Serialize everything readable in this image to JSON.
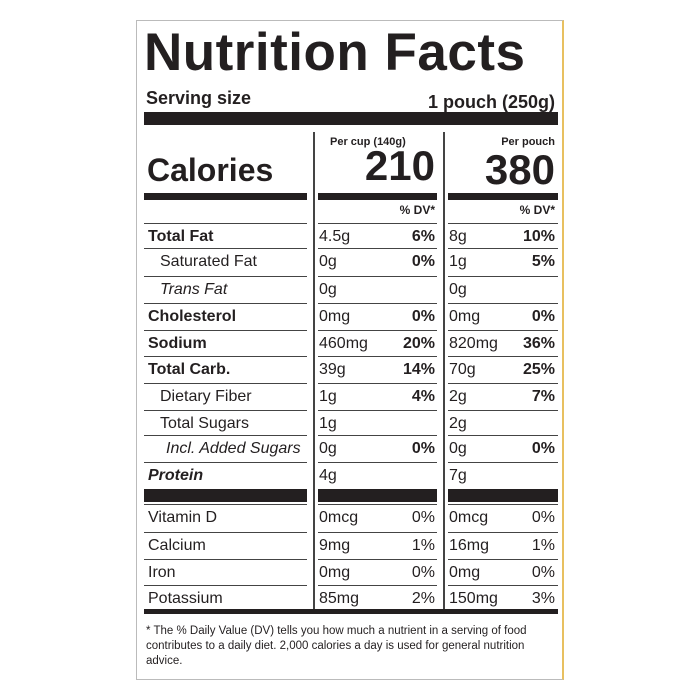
{
  "header": {
    "title": "Nutrition Facts",
    "serving_size_label": "Serving size",
    "serving_size": "1 pouch (250g)"
  },
  "columns": {
    "per_cup": "Per cup (140g)",
    "per_pouch": "Per pouch",
    "dv_header": "% DV*"
  },
  "calories": {
    "label": "Calories",
    "per_cup": "210",
    "per_pouch": "380"
  },
  "nutrients": [
    {
      "name": "Total Fat",
      "per_cup": {
        "amount": "4.5g",
        "dv": "6%"
      },
      "per_pouch": {
        "amount": "8g",
        "dv": "10%"
      }
    },
    {
      "name": "Saturated Fat",
      "per_cup": {
        "amount": "0g",
        "dv": "0%"
      },
      "per_pouch": {
        "amount": "1g",
        "dv": "5%"
      }
    },
    {
      "name": "Trans Fat",
      "per_cup": {
        "amount": "0g",
        "dv": null
      },
      "per_pouch": {
        "amount": "0g",
        "dv": null
      }
    },
    {
      "name": "Cholesterol",
      "per_cup": {
        "amount": "0mg",
        "dv": "0%"
      },
      "per_pouch": {
        "amount": "0mg",
        "dv": "0%"
      }
    },
    {
      "name": "Sodium",
      "per_cup": {
        "amount": "460mg",
        "dv": "20%"
      },
      "per_pouch": {
        "amount": "820mg",
        "dv": "36%"
      }
    },
    {
      "name": "Total Carb.",
      "per_cup": {
        "amount": "39g",
        "dv": "14%"
      },
      "per_pouch": {
        "amount": "70g",
        "dv": "25%"
      }
    },
    {
      "name": "Dietary Fiber",
      "per_cup": {
        "amount": "1g",
        "dv": "4%"
      },
      "per_pouch": {
        "amount": "2g",
        "dv": "7%"
      }
    },
    {
      "name": "Total Sugars",
      "per_cup": {
        "amount": "1g",
        "dv": null
      },
      "per_pouch": {
        "amount": "2g",
        "dv": null
      }
    },
    {
      "name": "Incl. Added Sugars",
      "per_cup": {
        "amount": "0g",
        "dv": "0%"
      },
      "per_pouch": {
        "amount": "0g",
        "dv": "0%"
      }
    },
    {
      "name": "Protein",
      "per_cup": {
        "amount": "4g",
        "dv": null
      },
      "per_pouch": {
        "amount": "7g",
        "dv": null
      }
    }
  ],
  "vitamins_minerals": [
    {
      "name": "Vitamin D",
      "per_cup": {
        "amount": "0mcg",
        "dv": "0%"
      },
      "per_pouch": {
        "amount": "0mcg",
        "dv": "0%"
      }
    },
    {
      "name": "Calcium",
      "per_cup": {
        "amount": "9mg",
        "dv": "1%"
      },
      "per_pouch": {
        "amount": "16mg",
        "dv": "1%"
      }
    },
    {
      "name": "Iron",
      "per_cup": {
        "amount": "0mg",
        "dv": "0%"
      },
      "per_pouch": {
        "amount": "0mg",
        "dv": "0%"
      }
    },
    {
      "name": "Potassium",
      "per_cup": {
        "amount": "85mg",
        "dv": "2%"
      },
      "per_pouch": {
        "amount": "150mg",
        "dv": "3%"
      }
    }
  ],
  "footnote": "* The % Daily Value (DV) tells you how much a nutrient in a serving of food contributes to a daily diet. 2,000 calories a day is used for general nutrition advice."
}
